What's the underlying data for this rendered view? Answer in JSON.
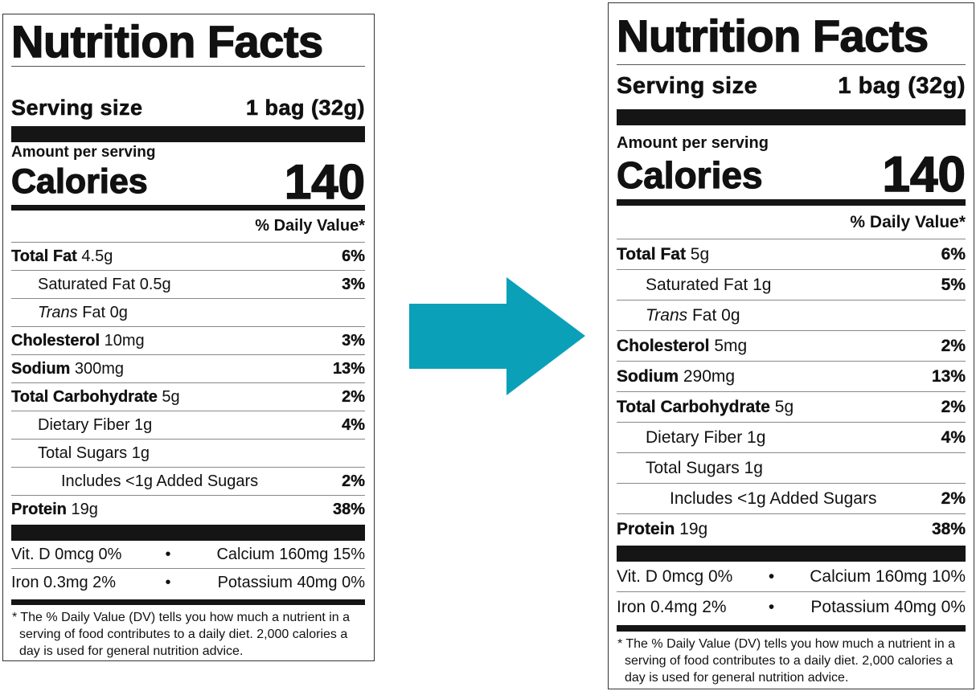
{
  "arrow": {
    "icon": "arrow-right-icon",
    "color": "#0aa0b8"
  },
  "labels": [
    {
      "title": "Nutrition Facts",
      "serving_label": "Serving size",
      "serving_value": "1 bag (32g)",
      "amount_per_serving": "Amount per serving",
      "calories_label": "Calories",
      "calories_value": "140",
      "dv_header": "% Daily Value*",
      "nutrients": [
        {
          "bold": "Total Fat",
          "text": " 4.5g",
          "dv": "6%",
          "level": 0
        },
        {
          "text": "Saturated Fat 0.5g",
          "dv": "3%",
          "level": 1
        },
        {
          "italic": "Trans",
          "text": " Fat 0g",
          "dv": "",
          "level": 1
        },
        {
          "bold": "Cholesterol",
          "text": " 10mg",
          "dv": "3%",
          "level": 0
        },
        {
          "bold": "Sodium",
          "text": " 300mg",
          "dv": "13%",
          "level": 0
        },
        {
          "bold": "Total Carbohydrate",
          "text": " 5g",
          "dv": "2%",
          "level": 0
        },
        {
          "text": "Dietary Fiber 1g",
          "dv": "4%",
          "level": 1
        },
        {
          "text": "Total Sugars 1g",
          "dv": "",
          "level": 1
        },
        {
          "text": "Includes <1g Added Sugars",
          "dv": "2%",
          "level": 2
        },
        {
          "bold": "Protein",
          "text": " 19g",
          "dv": "38%",
          "level": 0
        }
      ],
      "vitamins": [
        {
          "left": "Vit. D 0mcg 0%",
          "sep": "•",
          "right": "Calcium 160mg 15%"
        },
        {
          "left": "Iron 0.3mg 2%",
          "sep": "•",
          "right": "Potassium 40mg 0%"
        }
      ],
      "footnote": "* The % Daily Value (DV) tells you how much a nutrient in a serving of food contributes to a daily diet. 2,000 calories a day is used for general nutrition advice."
    },
    {
      "title": "Nutrition Facts",
      "serving_label": "Serving size",
      "serving_value": "1 bag (32g)",
      "amount_per_serving": "Amount per serving",
      "calories_label": "Calories",
      "calories_value": "140",
      "dv_header": "% Daily Value*",
      "nutrients": [
        {
          "bold": "Total Fat",
          "text": " 5g",
          "dv": "6%",
          "level": 0
        },
        {
          "text": "Saturated Fat 1g",
          "dv": "5%",
          "level": 1
        },
        {
          "italic": "Trans",
          "text": " Fat 0g",
          "dv": "",
          "level": 1
        },
        {
          "bold": "Cholesterol",
          "text": " 5mg",
          "dv": "2%",
          "level": 0
        },
        {
          "bold": "Sodium",
          "text": " 290mg",
          "dv": "13%",
          "level": 0
        },
        {
          "bold": "Total Carbohydrate",
          "text": " 5g",
          "dv": "2%",
          "level": 0
        },
        {
          "text": "Dietary Fiber 1g",
          "dv": "4%",
          "level": 1
        },
        {
          "text": "Total Sugars 1g",
          "dv": "",
          "level": 1
        },
        {
          "text": "Includes <1g Added Sugars",
          "dv": "2%",
          "level": 2
        },
        {
          "bold": "Protein",
          "text": " 19g",
          "dv": "38%",
          "level": 0
        }
      ],
      "vitamins": [
        {
          "left": "Vit. D 0mcg 0%",
          "sep": "•",
          "right": "Calcium 160mg 10%"
        },
        {
          "left": "Iron 0.4mg 2%",
          "sep": "•",
          "right": "Potassium 40mg 0%"
        }
      ],
      "footnote": "* The % Daily Value (DV) tells you how much a nutrient in a serving of food contributes to a daily diet. 2,000 calories a day is used for general nutrition advice."
    }
  ]
}
